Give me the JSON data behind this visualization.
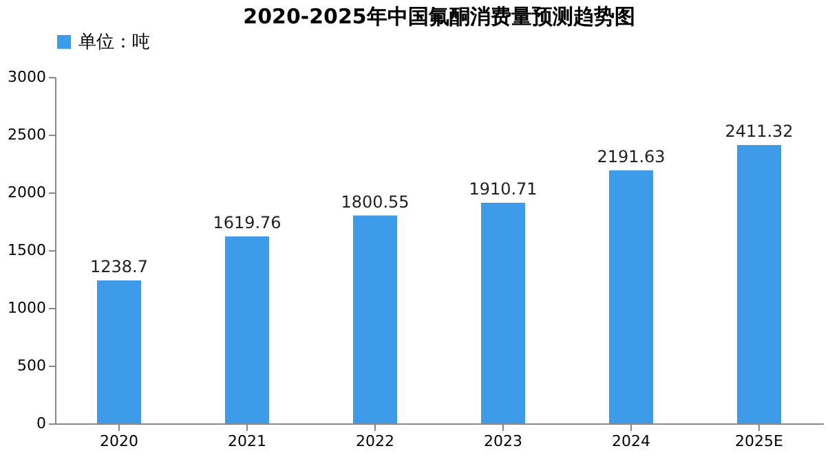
{
  "chart_data": {
    "type": "bar",
    "title": "2020-2025年中国氟酮消费量预测趋势图",
    "categories": [
      "2020",
      "2021",
      "2022",
      "2023",
      "2024",
      "2025E"
    ],
    "series": [
      {
        "name": "单位：吨",
        "color": "#3d9be9",
        "values": [
          1238.7,
          1619.76,
          1800.55,
          1910.71,
          2191.63,
          2411.32
        ]
      }
    ],
    "ylim": [
      0,
      3000
    ],
    "yticks": [
      0,
      500,
      1000,
      1500,
      2000,
      2500,
      3000
    ],
    "grid": false,
    "legend": "top",
    "data_labels": true
  }
}
